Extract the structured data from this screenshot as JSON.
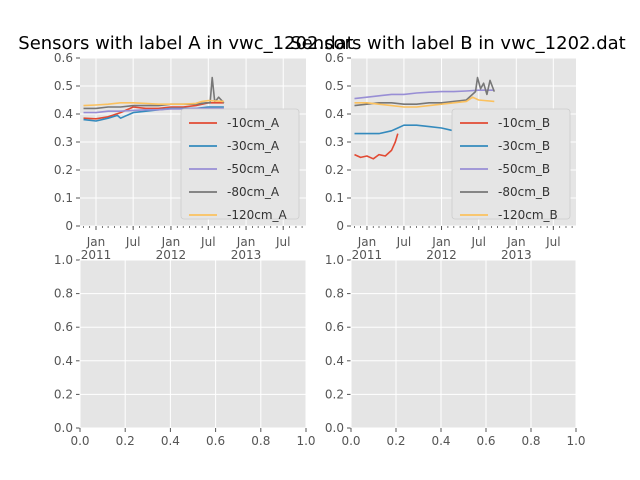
{
  "chart_data": [
    {
      "type": "line",
      "title": "Sensors with label A in vwc_1202.dat",
      "xlabel": "",
      "ylabel": "",
      "x_tick_labels": [
        "Jan\n2011",
        "Jul",
        "Jan\n2012",
        "Jul",
        "Jan\n2013",
        "Jul"
      ],
      "x_range": [
        "2010-10-15",
        "2013-10-20"
      ],
      "ylim": [
        0.0,
        0.6
      ],
      "y_ticks": [
        0.0,
        0.1,
        0.2,
        0.3,
        0.4,
        0.5,
        0.6
      ],
      "grid": true,
      "legend": "center-right",
      "series": [
        {
          "name": "-10cm_A",
          "color": "#E24A33",
          "x": [
            "2010-11-01",
            "2011-01-01",
            "2011-03-01",
            "2011-05-01",
            "2011-07-01",
            "2011-09-01",
            "2011-11-01",
            "2012-01-01",
            "2012-03-01",
            "2012-05-01",
            "2012-07-01",
            "2012-09-15"
          ],
          "y": [
            0.385,
            0.383,
            0.39,
            0.405,
            0.425,
            0.42,
            0.42,
            0.425,
            0.425,
            0.43,
            0.44,
            0.44
          ]
        },
        {
          "name": "-30cm_A",
          "color": "#348ABD",
          "x": [
            "2010-11-01",
            "2011-01-01",
            "2011-03-01",
            "2011-04-15",
            "2011-05-01",
            "2011-07-01",
            "2011-09-01",
            "2011-11-01",
            "2012-01-01",
            "2012-03-01",
            "2012-05-01",
            "2012-07-01",
            "2012-09-15"
          ],
          "y": [
            0.38,
            0.375,
            0.385,
            0.395,
            0.385,
            0.405,
            0.41,
            0.415,
            0.42,
            0.42,
            0.42,
            0.425,
            0.425
          ]
        },
        {
          "name": "-50cm_A",
          "color": "#988ED5",
          "x": [
            "2010-11-01",
            "2011-01-01",
            "2011-03-01",
            "2011-05-01",
            "2011-07-01",
            "2011-09-01",
            "2011-11-01",
            "2012-01-01",
            "2012-03-01",
            "2012-05-01",
            "2012-07-01",
            "2012-09-15"
          ],
          "y": [
            0.405,
            0.405,
            0.41,
            0.41,
            0.413,
            0.415,
            0.415,
            0.418,
            0.418,
            0.42,
            0.42,
            0.42
          ]
        },
        {
          "name": "-80cm_A",
          "color": "#777777",
          "x": [
            "2010-11-01",
            "2011-01-01",
            "2011-03-01",
            "2011-05-01",
            "2011-07-01",
            "2011-09-01",
            "2011-11-01",
            "2012-01-01",
            "2012-03-01",
            "2012-05-01",
            "2012-06-20",
            "2012-07-10",
            "2012-07-20",
            "2012-08-01",
            "2012-08-10",
            "2012-08-20",
            "2012-09-15"
          ],
          "y": [
            0.42,
            0.42,
            0.425,
            0.425,
            0.43,
            0.43,
            0.43,
            0.435,
            0.435,
            0.435,
            0.44,
            0.44,
            0.53,
            0.445,
            0.45,
            0.46,
            0.44
          ]
        },
        {
          "name": "-120cm_A",
          "color": "#FBC15E",
          "x": [
            "2010-11-01",
            "2011-01-01",
            "2011-03-01",
            "2011-05-01",
            "2011-07-01",
            "2011-09-01",
            "2011-11-01",
            "2012-01-01",
            "2012-03-01",
            "2012-05-01",
            "2012-06-01",
            "2012-07-01",
            "2012-09-15"
          ],
          "y": [
            0.43,
            0.432,
            0.435,
            0.44,
            0.44,
            0.438,
            0.435,
            0.435,
            0.435,
            0.438,
            0.445,
            0.448,
            0.445
          ]
        }
      ]
    },
    {
      "type": "line",
      "title": "Sensors with label B in vwc_1202.dat",
      "xlabel": "",
      "ylabel": "",
      "x_tick_labels": [
        "Jan\n2011",
        "Jul",
        "Jan\n2012",
        "Jul",
        "Jan\n2013",
        "Jul"
      ],
      "x_range": [
        "2010-10-15",
        "2013-10-20"
      ],
      "ylim": [
        0.0,
        0.6
      ],
      "y_ticks": [
        0.0,
        0.1,
        0.2,
        0.3,
        0.4,
        0.5,
        0.6
      ],
      "grid": true,
      "legend": "center-right",
      "series": [
        {
          "name": "-10cm_B",
          "color": "#E24A33",
          "x": [
            "2010-11-01",
            "2010-12-01",
            "2011-01-01",
            "2011-02-01",
            "2011-03-01",
            "2011-04-01",
            "2011-05-01",
            "2011-05-20",
            "2011-06-01"
          ],
          "y": [
            0.255,
            0.245,
            0.25,
            0.24,
            0.255,
            0.25,
            0.27,
            0.3,
            0.33
          ]
        },
        {
          "name": "-30cm_B",
          "color": "#348ABD",
          "x": [
            "2010-11-01",
            "2011-01-01",
            "2011-03-01",
            "2011-05-01",
            "2011-06-01",
            "2011-07-01",
            "2011-09-01",
            "2011-11-01",
            "2012-01-01",
            "2012-03-01",
            "2012-05-01",
            "2012-07-01",
            "2012-09-15"
          ],
          "y": [
            0.33,
            0.33,
            0.33,
            0.34,
            0.35,
            0.36,
            0.36,
            0.355,
            0.35,
            0.34,
            0.35,
            0.355,
            0.36
          ]
        },
        {
          "name": "-50cm_B",
          "color": "#988ED5",
          "x": [
            "2010-11-01",
            "2011-01-01",
            "2011-03-01",
            "2011-05-01",
            "2011-07-01",
            "2011-09-01",
            "2011-11-01",
            "2012-01-01",
            "2012-03-01",
            "2012-05-01",
            "2012-07-01",
            "2012-09-15"
          ],
          "y": [
            0.455,
            0.46,
            0.465,
            0.47,
            0.47,
            0.475,
            0.478,
            0.48,
            0.48,
            0.482,
            0.485,
            0.485
          ]
        },
        {
          "name": "-80cm_B",
          "color": "#777777",
          "x": [
            "2010-11-01",
            "2011-01-01",
            "2011-03-01",
            "2011-05-01",
            "2011-07-01",
            "2011-09-01",
            "2011-11-01",
            "2012-01-01",
            "2012-03-01",
            "2012-05-01",
            "2012-06-15",
            "2012-06-25",
            "2012-07-10",
            "2012-07-25",
            "2012-08-10",
            "2012-08-25",
            "2012-09-15"
          ],
          "y": [
            0.43,
            0.435,
            0.44,
            0.44,
            0.435,
            0.435,
            0.44,
            0.44,
            0.445,
            0.45,
            0.48,
            0.53,
            0.49,
            0.51,
            0.47,
            0.52,
            0.48
          ]
        },
        {
          "name": "-120cm_B",
          "color": "#FBC15E",
          "x": [
            "2010-11-01",
            "2011-01-01",
            "2011-03-01",
            "2011-05-01",
            "2011-07-01",
            "2011-09-01",
            "2011-11-01",
            "2012-01-01",
            "2012-03-01",
            "2012-05-01",
            "2012-06-01",
            "2012-07-01",
            "2012-09-15"
          ],
          "y": [
            0.44,
            0.44,
            0.435,
            0.43,
            0.425,
            0.425,
            0.43,
            0.435,
            0.44,
            0.445,
            0.46,
            0.45,
            0.445
          ]
        }
      ]
    },
    {
      "type": "line",
      "title": "",
      "xlim": [
        0.0,
        1.0
      ],
      "ylim": [
        0.0,
        1.0
      ],
      "x_ticks": [
        "0.0",
        "0.2",
        "0.4",
        "0.6",
        "0.8",
        "1.0"
      ],
      "y_ticks": [
        "0.0",
        "0.2",
        "0.4",
        "0.6",
        "0.8",
        "1.0"
      ],
      "grid": true,
      "series": []
    },
    {
      "type": "line",
      "title": "",
      "xlim": [
        0.0,
        1.0
      ],
      "ylim": [
        0.0,
        1.0
      ],
      "x_ticks": [
        "0.0",
        "0.2",
        "0.4",
        "0.6",
        "0.8",
        "1.0"
      ],
      "y_ticks": [
        "0.0",
        "0.2",
        "0.4",
        "0.6",
        "0.8",
        "1.0"
      ],
      "grid": true,
      "series": []
    }
  ]
}
